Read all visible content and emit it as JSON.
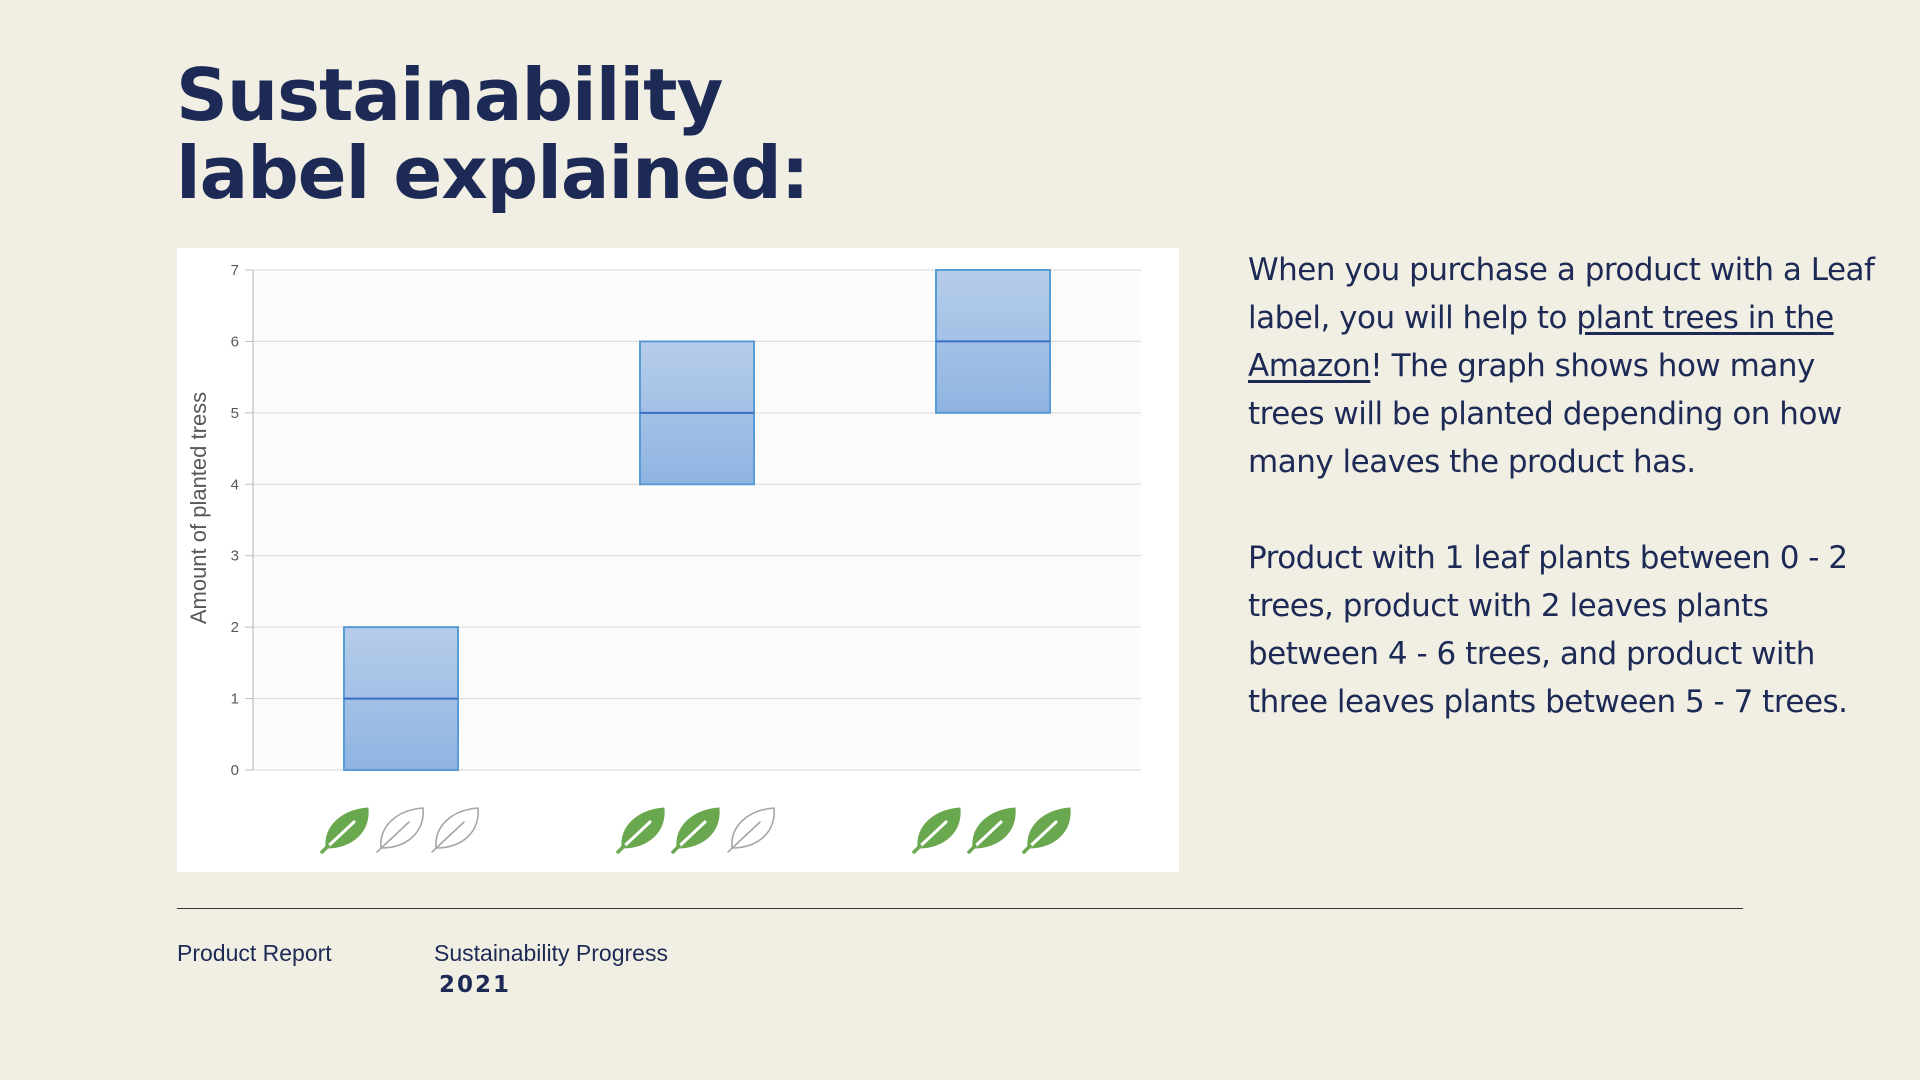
{
  "slide": {
    "title": "Sustainability label explained:",
    "description_p1_before": "When you purchase a product with a Leaf label, you will help to ",
    "description_p1_link": "plant trees in the Amazon",
    "description_p1_after": "! The graph shows how many trees will be planted depending on how many leaves the product has.",
    "description_p2": "Product with 1 leaf plants between 0 - 2 trees, product with 2 leaves plants between 4 - 6 trees, and product with three leaves plants between 5 - 7 trees."
  },
  "footer": {
    "left": "Product Report",
    "middle": "Sustainability Progress",
    "year": "2021"
  },
  "colors": {
    "background": "#f1efe3",
    "text": "#1c2a55",
    "box_fill_top": "#b6cdea",
    "box_fill_bottom": "#8fb4e2",
    "box_stroke": "#5b9bd5",
    "median_line": "#3a6fc4",
    "leaf_filled": "#6aa84f",
    "leaf_empty_stroke": "#a6a6a6"
  },
  "chart_data": {
    "type": "box",
    "ylabel": "Amount  of planted tress",
    "xlabel": "",
    "ylim": [
      0,
      7
    ],
    "yticks": [
      "0",
      "1",
      "2",
      "3",
      "4",
      "5",
      "6",
      "7"
    ],
    "grid": true,
    "categories": [
      {
        "leaves_filled": 1,
        "leaves_total": 3,
        "min": 0,
        "median": 1,
        "max": 2
      },
      {
        "leaves_filled": 2,
        "leaves_total": 3,
        "min": 4,
        "median": 5,
        "max": 6
      },
      {
        "leaves_filled": 3,
        "leaves_total": 3,
        "min": 5,
        "median": 6,
        "max": 7
      }
    ]
  }
}
